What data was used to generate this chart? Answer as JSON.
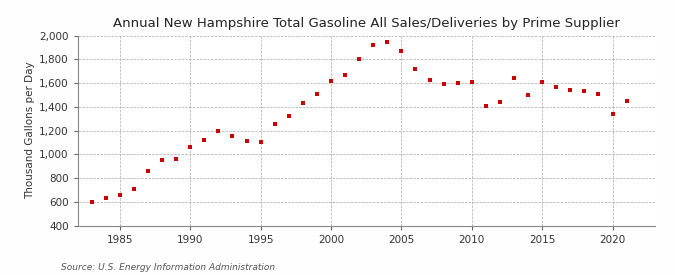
{
  "title": "Annual New Hampshire Total Gasoline All Sales/Deliveries by Prime Supplier",
  "ylabel": "Thousand Gallons per Day",
  "source": "Source: U.S. Energy Information Administration",
  "background_color": "#fefefe",
  "plot_background_color": "#ffffff",
  "marker_color": "#cc0000",
  "years": [
    1983,
    1984,
    1985,
    1986,
    1987,
    1988,
    1989,
    1990,
    1991,
    1992,
    1993,
    1994,
    1995,
    1996,
    1997,
    1998,
    1999,
    2000,
    2001,
    2002,
    2003,
    2004,
    2005,
    2006,
    2007,
    2008,
    2009,
    2010,
    2011,
    2012,
    2013,
    2014,
    2015,
    2016,
    2017,
    2018,
    2019,
    2020,
    2021
  ],
  "values": [
    600,
    635,
    655,
    710,
    860,
    950,
    960,
    1060,
    1120,
    1200,
    1155,
    1110,
    1105,
    1260,
    1320,
    1430,
    1510,
    1620,
    1670,
    1800,
    1920,
    1950,
    1870,
    1720,
    1630,
    1590,
    1600,
    1610,
    1410,
    1445,
    1640,
    1500,
    1610,
    1570,
    1545,
    1530,
    1510,
    1340,
    1450
  ],
  "xlim": [
    1982,
    2023
  ],
  "ylim": [
    400,
    2000
  ],
  "yticks": [
    400,
    600,
    800,
    1000,
    1200,
    1400,
    1600,
    1800,
    2000
  ],
  "xticks": [
    1985,
    1990,
    1995,
    2000,
    2005,
    2010,
    2015,
    2020
  ],
  "title_fontsize": 9.5,
  "ylabel_fontsize": 7.5,
  "tick_fontsize": 7.5,
  "source_fontsize": 6.5
}
